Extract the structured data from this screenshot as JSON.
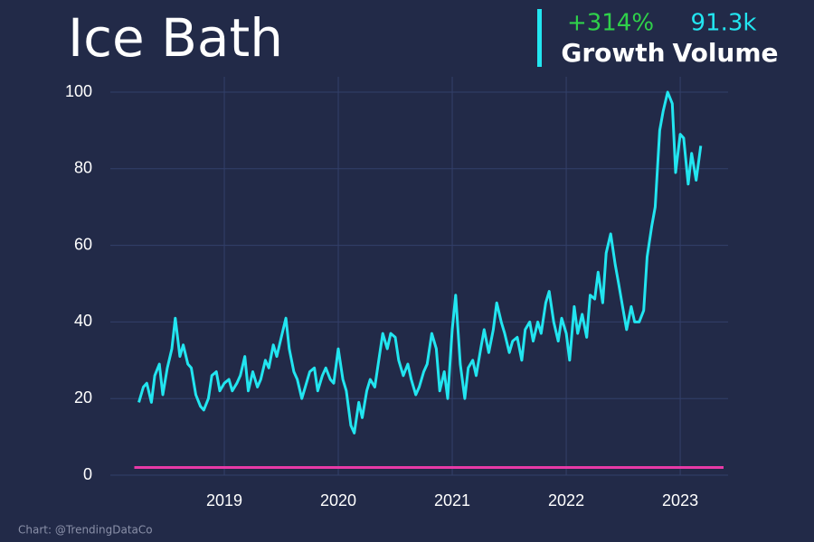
{
  "chart_data": {
    "type": "line",
    "title": "Ice Bath",
    "stats": [
      {
        "value": "+314%",
        "label": "Growth",
        "color": "#2fd14a"
      },
      {
        "value": "91.3k",
        "label": "Volume",
        "color": "#22e5f0"
      }
    ],
    "source": "Chart: @TrendingDataCo",
    "xlim": [
      2018,
      2023.42
    ],
    "xticks": [
      2019,
      2020,
      2021,
      2022,
      2023
    ],
    "ylim": [
      0,
      100
    ],
    "yticks": [
      0,
      20,
      40,
      60,
      80,
      100
    ],
    "grid": true,
    "series": [
      {
        "color": "#22e5f0",
        "x": [
          2018.25,
          2018.29,
          2018.32,
          2018.36,
          2018.39,
          2018.43,
          2018.46,
          2018.5,
          2018.54,
          2018.57,
          2018.61,
          2018.64,
          2018.68,
          2018.71,
          2018.75,
          2018.79,
          2018.82,
          2018.86,
          2018.89,
          2018.93,
          2018.96,
          2019.0,
          2019.04,
          2019.07,
          2019.11,
          2019.14,
          2019.18,
          2019.21,
          2019.25,
          2019.29,
          2019.32,
          2019.36,
          2019.39,
          2019.43,
          2019.46,
          2019.5,
          2019.54,
          2019.57,
          2019.61,
          2019.64,
          2019.68,
          2019.71,
          2019.75,
          2019.79,
          2019.82,
          2019.86,
          2019.89,
          2019.93,
          2019.96,
          2020.0,
          2020.04,
          2020.07,
          2020.11,
          2020.14,
          2020.18,
          2020.21,
          2020.25,
          2020.28,
          2020.32,
          2020.36,
          2020.39,
          2020.43,
          2020.46,
          2020.5,
          2020.53,
          2020.57,
          2020.61,
          2020.64,
          2020.68,
          2020.71,
          2020.75,
          2020.78,
          2020.82,
          2020.86,
          2020.89,
          2020.93,
          2020.96,
          2021.0,
          2021.03,
          2021.07,
          2021.11,
          2021.14,
          2021.18,
          2021.21,
          2021.25,
          2021.28,
          2021.32,
          2021.36,
          2021.39,
          2021.43,
          2021.46,
          2021.5,
          2021.53,
          2021.57,
          2021.61,
          2021.64,
          2021.68,
          2021.71,
          2021.75,
          2021.78,
          2021.82,
          2021.85,
          2021.89,
          2021.93,
          2021.96,
          2022.0,
          2022.03,
          2022.07,
          2022.1,
          2022.14,
          2022.18,
          2022.21,
          2022.25,
          2022.28,
          2022.32,
          2022.35,
          2022.39,
          2022.43,
          2022.46,
          2022.5,
          2022.53,
          2022.57,
          2022.6,
          2022.64,
          2022.68,
          2022.71,
          2022.75,
          2022.78,
          2022.82,
          2022.85,
          2022.89,
          2022.93,
          2022.96,
          2023.0,
          2023.03,
          2023.07,
          2023.1,
          2023.14,
          2023.18
        ],
        "values": [
          19,
          23,
          24,
          19,
          26,
          29,
          21,
          28,
          33,
          41,
          31,
          34,
          29,
          28,
          21,
          18,
          17,
          20,
          26,
          27,
          22,
          24,
          25,
          22,
          24,
          26,
          31,
          22,
          27,
          23,
          25,
          30,
          28,
          34,
          31,
          36,
          41,
          33,
          27,
          25,
          20,
          23,
          27,
          28,
          22,
          26,
          28,
          25,
          24,
          33,
          25,
          22,
          13,
          11,
          19,
          15,
          22,
          25,
          23,
          31,
          37,
          33,
          37,
          36,
          30,
          26,
          29,
          25,
          21,
          23,
          27,
          29,
          37,
          33,
          22,
          27,
          20,
          38,
          47,
          29,
          20,
          28,
          30,
          26,
          33,
          38,
          32,
          38,
          45,
          40,
          37,
          32,
          35,
          36,
          30,
          38,
          40,
          35,
          40,
          37,
          45,
          48,
          40,
          35,
          41,
          37,
          30,
          44,
          37,
          42,
          36,
          47,
          46,
          53,
          45,
          58,
          63,
          55,
          50,
          43,
          38,
          44,
          40,
          40,
          43,
          57,
          65,
          70,
          90,
          95,
          100,
          97,
          79,
          89,
          88,
          76,
          84,
          77,
          86
        ]
      },
      {
        "color": "#e83aa6",
        "x": [
          2018.21,
          2023.38
        ],
        "values": [
          2,
          2
        ]
      }
    ]
  }
}
